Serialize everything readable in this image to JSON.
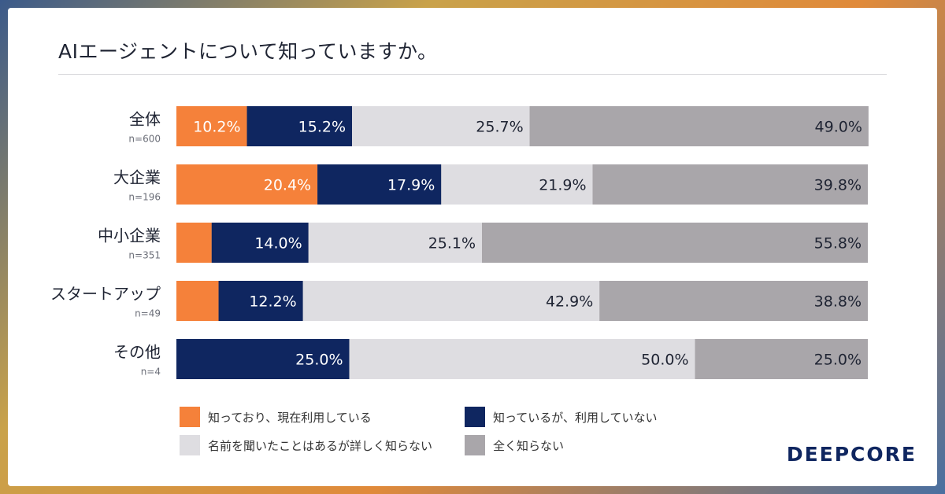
{
  "page": {
    "title": "AIエージェントについて知っていますか。",
    "logo": "DEEPCORE"
  },
  "colors": {
    "orange": "#f5813a",
    "navy": "#0f2660",
    "light": "#dedde1",
    "gray": "#a9a6aa"
  },
  "chart_data": {
    "type": "bar",
    "orientation": "horizontal",
    "stacked": true,
    "percent": true,
    "title": "AIエージェントについて知っていますか。",
    "categories": [
      {
        "label": "全体",
        "n": "n=600"
      },
      {
        "label": "大企業",
        "n": "n=196"
      },
      {
        "label": "中小企業",
        "n": "n=351"
      },
      {
        "label": "スタートアップ",
        "n": "n=49"
      },
      {
        "label": "その他",
        "n": "n=4"
      }
    ],
    "series": [
      {
        "name": "知っており、現在利用している",
        "color": "#f5813a",
        "text": "#ffffff",
        "values": [
          10.2,
          20.4,
          5.1,
          6.1,
          0.0
        ],
        "labels": [
          "10.2%",
          "20.4%",
          "",
          "",
          ""
        ]
      },
      {
        "name": "知っているが、利用していない",
        "color": "#0f2660",
        "text": "#ffffff",
        "values": [
          15.2,
          17.9,
          14.0,
          12.2,
          25.0
        ],
        "labels": [
          "15.2%",
          "17.9%",
          "14.0%",
          "12.2%",
          "25.0%"
        ]
      },
      {
        "name": "名前を聞いたことはあるが詳しく知らない",
        "color": "#dedde1",
        "text": "#1f2433",
        "values": [
          25.7,
          21.9,
          25.1,
          42.9,
          50.0
        ],
        "labels": [
          "25.7%",
          "21.9%",
          "25.1%",
          "42.9%",
          "50.0%"
        ]
      },
      {
        "name": "全く知らない",
        "color": "#a9a6aa",
        "text": "#1f2433",
        "values": [
          49.0,
          39.8,
          55.8,
          38.8,
          25.0
        ],
        "labels": [
          "49.0%",
          "39.8%",
          "55.8%",
          "38.8%",
          "25.0%"
        ]
      }
    ],
    "xlim": [
      0,
      100
    ],
    "legend_position": "bottom"
  }
}
